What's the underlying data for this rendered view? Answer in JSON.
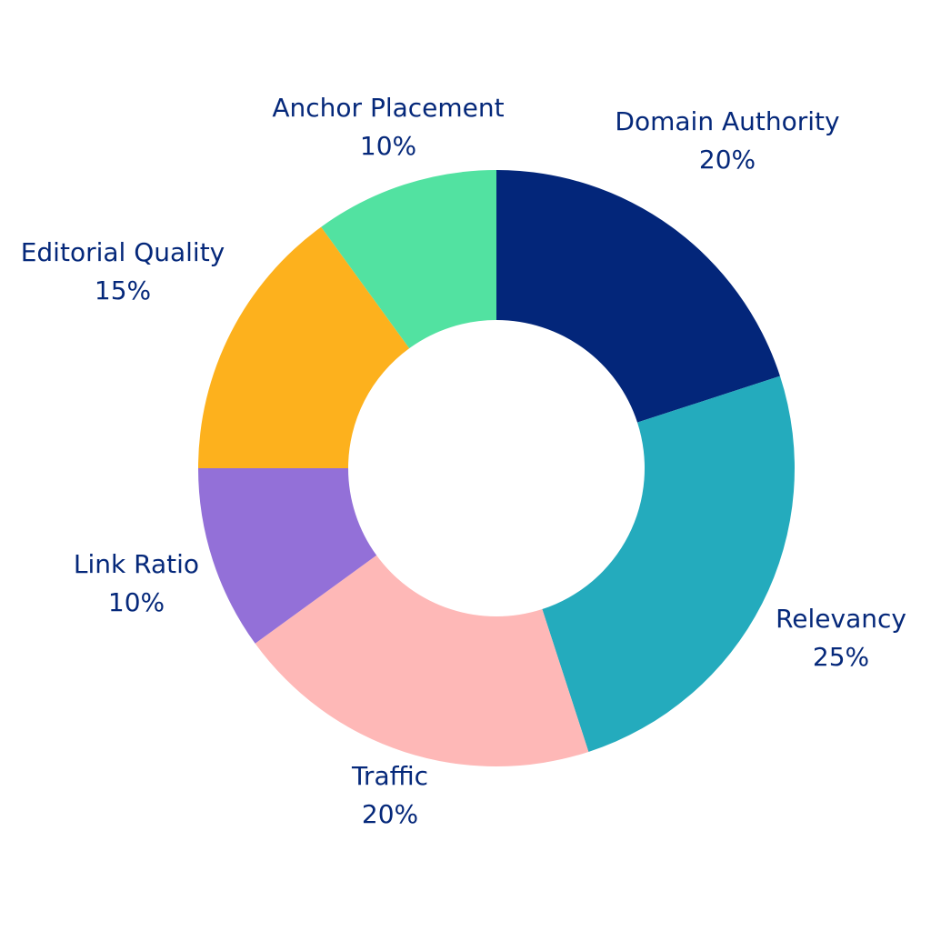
{
  "chart_data": {
    "type": "pie",
    "donut": true,
    "categories": [
      "Domain Authority",
      "Relevancy",
      "Traffic",
      "Link Ratio",
      "Editorial Quality",
      "Anchor Placement"
    ],
    "values": [
      20,
      25,
      20,
      10,
      15,
      10
    ],
    "value_labels": [
      "20%",
      "25%",
      "20%",
      "10%",
      "15%",
      "10%"
    ],
    "colors": [
      "#03267a",
      "#24abbd",
      "#feb8b7",
      "#9370d8",
      "#fdb11d",
      "#52e2a1"
    ],
    "label_color": "#05287a",
    "start": "12 o'clock",
    "direction": "clockwise"
  }
}
